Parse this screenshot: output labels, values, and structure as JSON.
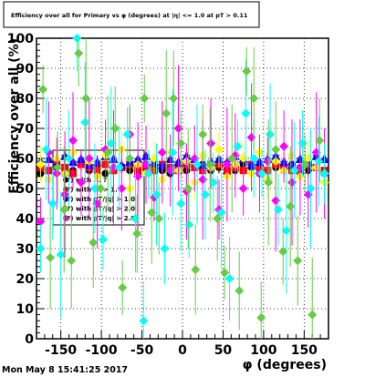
{
  "title": "Efficiency over all for Primary vs φ (degrees) at |η| <= 1.0 at pT > 0.11",
  "timestamp": "Mon May  8 15:41:25 2017",
  "chart_data": {
    "type": "scatter",
    "xlabel": "φ (degrees)",
    "ylabel": "Efficiency over all (%)",
    "xlim": [
      -180,
      180
    ],
    "ylim": [
      0,
      100
    ],
    "xticks": [
      -150,
      -100,
      -50,
      0,
      50,
      100,
      150
    ],
    "yticks": [
      0,
      10,
      20,
      30,
      40,
      50,
      60,
      70,
      80,
      90,
      100
    ],
    "grid": true,
    "legend_position": "center-left",
    "legend": [
      "(?) with ... ?",
      "(?) with ... > 1.",
      "(?) with pT/|q| > 1.0",
      "(?) with pT/|q| > 2.0",
      "(?) with pT/|q| > 2.0"
    ],
    "series": [
      {
        "color": "#000000",
        "marker": "circle",
        "values_note": "approx",
        "x": [
          -175,
          -165,
          -155,
          -145,
          -135,
          -125,
          -115,
          -105,
          -95,
          -85,
          -75,
          -65,
          -55,
          -45,
          -35,
          -25,
          -15,
          -5,
          5,
          15,
          25,
          35,
          45,
          55,
          65,
          75,
          85,
          95,
          105,
          115,
          125,
          135,
          145,
          155,
          165,
          175
        ],
        "y": [
          55,
          56,
          57,
          55,
          56,
          58,
          56,
          57,
          55,
          56,
          57,
          56,
          55,
          58,
          57,
          56,
          55,
          57,
          56,
          57,
          58,
          56,
          57,
          55,
          56,
          58,
          57,
          55,
          56,
          57,
          56,
          58,
          57,
          56,
          57,
          55
        ]
      },
      {
        "color": "#ff0000",
        "marker": "square",
        "values_note": "approx",
        "x": [
          -175,
          -165,
          -155,
          -145,
          -135,
          -125,
          -115,
          -105,
          -95,
          -85,
          -75,
          -65,
          -55,
          -45,
          -35,
          -25,
          -15,
          -5,
          5,
          15,
          25,
          35,
          45,
          55,
          65,
          75,
          85,
          95,
          105,
          115,
          125,
          135,
          145,
          155,
          165,
          175
        ],
        "y": [
          57,
          56,
          58,
          57,
          55,
          58,
          57,
          56,
          58,
          56,
          57,
          58,
          56,
          57,
          56,
          58,
          57,
          56,
          58,
          57,
          56,
          57,
          58,
          56,
          57,
          56,
          58,
          57,
          56,
          58,
          57,
          56,
          55,
          58,
          57,
          56
        ]
      },
      {
        "color": "#0000ff",
        "marker": "triangle",
        "values_note": "approx",
        "x": [
          -175,
          -165,
          -155,
          -145,
          -135,
          -125,
          -115,
          -105,
          -95,
          -85,
          -75,
          -65,
          -55,
          -45,
          -35,
          -25,
          -15,
          -5,
          5,
          15,
          25,
          35,
          45,
          55,
          65,
          75,
          85,
          95,
          105,
          115,
          125,
          135,
          145,
          155,
          165,
          175
        ],
        "y": [
          59,
          60,
          58,
          61,
          59,
          60,
          58,
          59,
          61,
          60,
          58,
          59,
          60,
          61,
          59,
          58,
          60,
          59,
          61,
          60,
          58,
          59,
          60,
          59,
          61,
          60,
          58,
          59,
          60,
          61,
          59,
          58,
          60,
          59,
          61,
          60
        ]
      },
      {
        "color": "#ffff00",
        "marker": "diamond",
        "values_note": "approx",
        "x": [
          -175,
          -165,
          -155,
          -145,
          -135,
          -125,
          -115,
          -105,
          -95,
          -85,
          -75,
          -65,
          -55,
          -45,
          -35,
          -25,
          -15,
          -5,
          5,
          15,
          25,
          35,
          45,
          55,
          65,
          75,
          85,
          95,
          105,
          115,
          125,
          135,
          145,
          155,
          165,
          175
        ],
        "y": [
          58,
          53,
          60,
          55,
          62,
          52,
          59,
          54,
          61,
          57,
          63,
          50,
          58,
          55,
          60,
          53,
          62,
          56,
          59,
          52,
          61,
          57,
          63,
          54,
          58,
          60,
          55,
          62,
          53,
          59,
          56,
          61,
          54,
          60,
          57,
          52
        ]
      },
      {
        "color": "#ff00ff",
        "marker": "diamond",
        "values_note": "approx",
        "x": [
          -175,
          -165,
          -155,
          -145,
          -135,
          -125,
          -115,
          -105,
          -95,
          -85,
          -75,
          -65,
          -55,
          -45,
          -35,
          -25,
          -15,
          -5,
          5,
          15,
          25,
          35,
          45,
          55,
          65,
          75,
          85,
          95,
          105,
          115,
          125,
          135,
          145,
          155,
          165,
          175
        ],
        "y": [
          39,
          62,
          55,
          48,
          66,
          52,
          60,
          45,
          63,
          57,
          50,
          68,
          54,
          58,
          47,
          62,
          56,
          70,
          49,
          60,
          53,
          65,
          43,
          58,
          61,
          50,
          67,
          55,
          59,
          46,
          64,
          52,
          57,
          48,
          62,
          55
        ]
      },
      {
        "color": "#00ffff",
        "marker": "diamond",
        "values_note": "approx",
        "x": [
          -175,
          -168,
          -160,
          -150,
          -140,
          -130,
          -120,
          -108,
          -98,
          -88,
          -78,
          -68,
          -58,
          -48,
          -42,
          -32,
          -22,
          -12,
          -2,
          8,
          18,
          28,
          38,
          48,
          58,
          68,
          78,
          88,
          98,
          108,
          118,
          128,
          138,
          148,
          158,
          168,
          175
        ],
        "y": [
          30,
          63,
          45,
          28,
          60,
          100,
          72,
          50,
          33,
          65,
          57,
          68,
          40,
          6,
          55,
          48,
          30,
          62,
          45,
          38,
          58,
          48,
          52,
          42,
          20,
          64,
          75,
          60,
          55,
          68,
          43,
          36,
          56,
          65,
          50,
          59,
          55
        ]
      },
      {
        "color": "#66cc44",
        "marker": "diamond",
        "values_note": "approx",
        "x": [
          -172,
          -163,
          -154,
          -146,
          -137,
          -128,
          -119,
          -110,
          -101,
          -92,
          -83,
          -74,
          -65,
          -56,
          -47,
          -38,
          -29,
          -20,
          -11,
          -2,
          7,
          16,
          25,
          34,
          43,
          52,
          61,
          70,
          79,
          88,
          97,
          106,
          115,
          124,
          133,
          142,
          151,
          160,
          169
        ],
        "y": [
          83,
          27,
          57,
          43,
          26,
          95,
          80,
          32,
          50,
          62,
          70,
          17,
          60,
          35,
          80,
          42,
          40,
          75,
          80,
          65,
          50,
          23,
          68,
          58,
          40,
          22,
          60,
          16,
          89,
          80,
          7,
          52,
          63,
          29,
          44,
          26,
          58,
          8,
          66
        ]
      }
    ]
  }
}
